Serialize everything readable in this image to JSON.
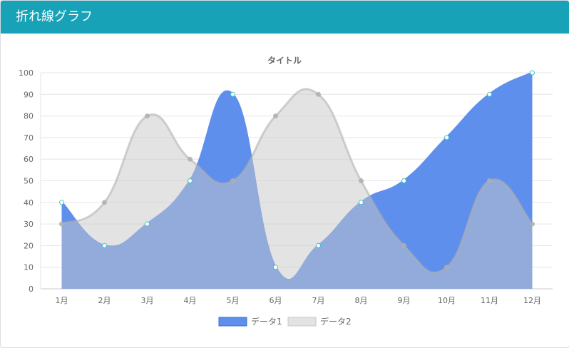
{
  "card": {
    "title": "折れ線グラフ"
  },
  "colors": {
    "header": "#17a2b8"
  },
  "chart_data": {
    "type": "area",
    "title": "タイトル",
    "categories": [
      "1月",
      "2月",
      "3月",
      "4月",
      "5月",
      "6月",
      "7月",
      "8月",
      "9月",
      "10月",
      "11月",
      "12月"
    ],
    "ylim": [
      0,
      100
    ],
    "yticks": [
      0,
      10,
      20,
      30,
      40,
      50,
      60,
      70,
      80,
      90,
      100
    ],
    "grid": true,
    "legend_position": "bottom",
    "series": [
      {
        "name": "データ1",
        "values": [
          40,
          20,
          30,
          50,
          90,
          10,
          20,
          40,
          50,
          70,
          90,
          100
        ],
        "fill": "#5f8fec",
        "stroke": "#5f8fec",
        "point_fill": "#ffffff",
        "point_stroke": "#3cc8c0"
      },
      {
        "name": "データ2",
        "values": [
          30,
          40,
          80,
          60,
          50,
          80,
          90,
          50,
          20,
          10,
          50,
          30
        ],
        "fill": "rgba(200,200,200,0.5)",
        "stroke": "rgba(175,175,175,0.55)",
        "point_fill": "rgba(175,175,175,0.8)",
        "point_stroke": "rgba(175,175,175,0.8)"
      }
    ]
  }
}
